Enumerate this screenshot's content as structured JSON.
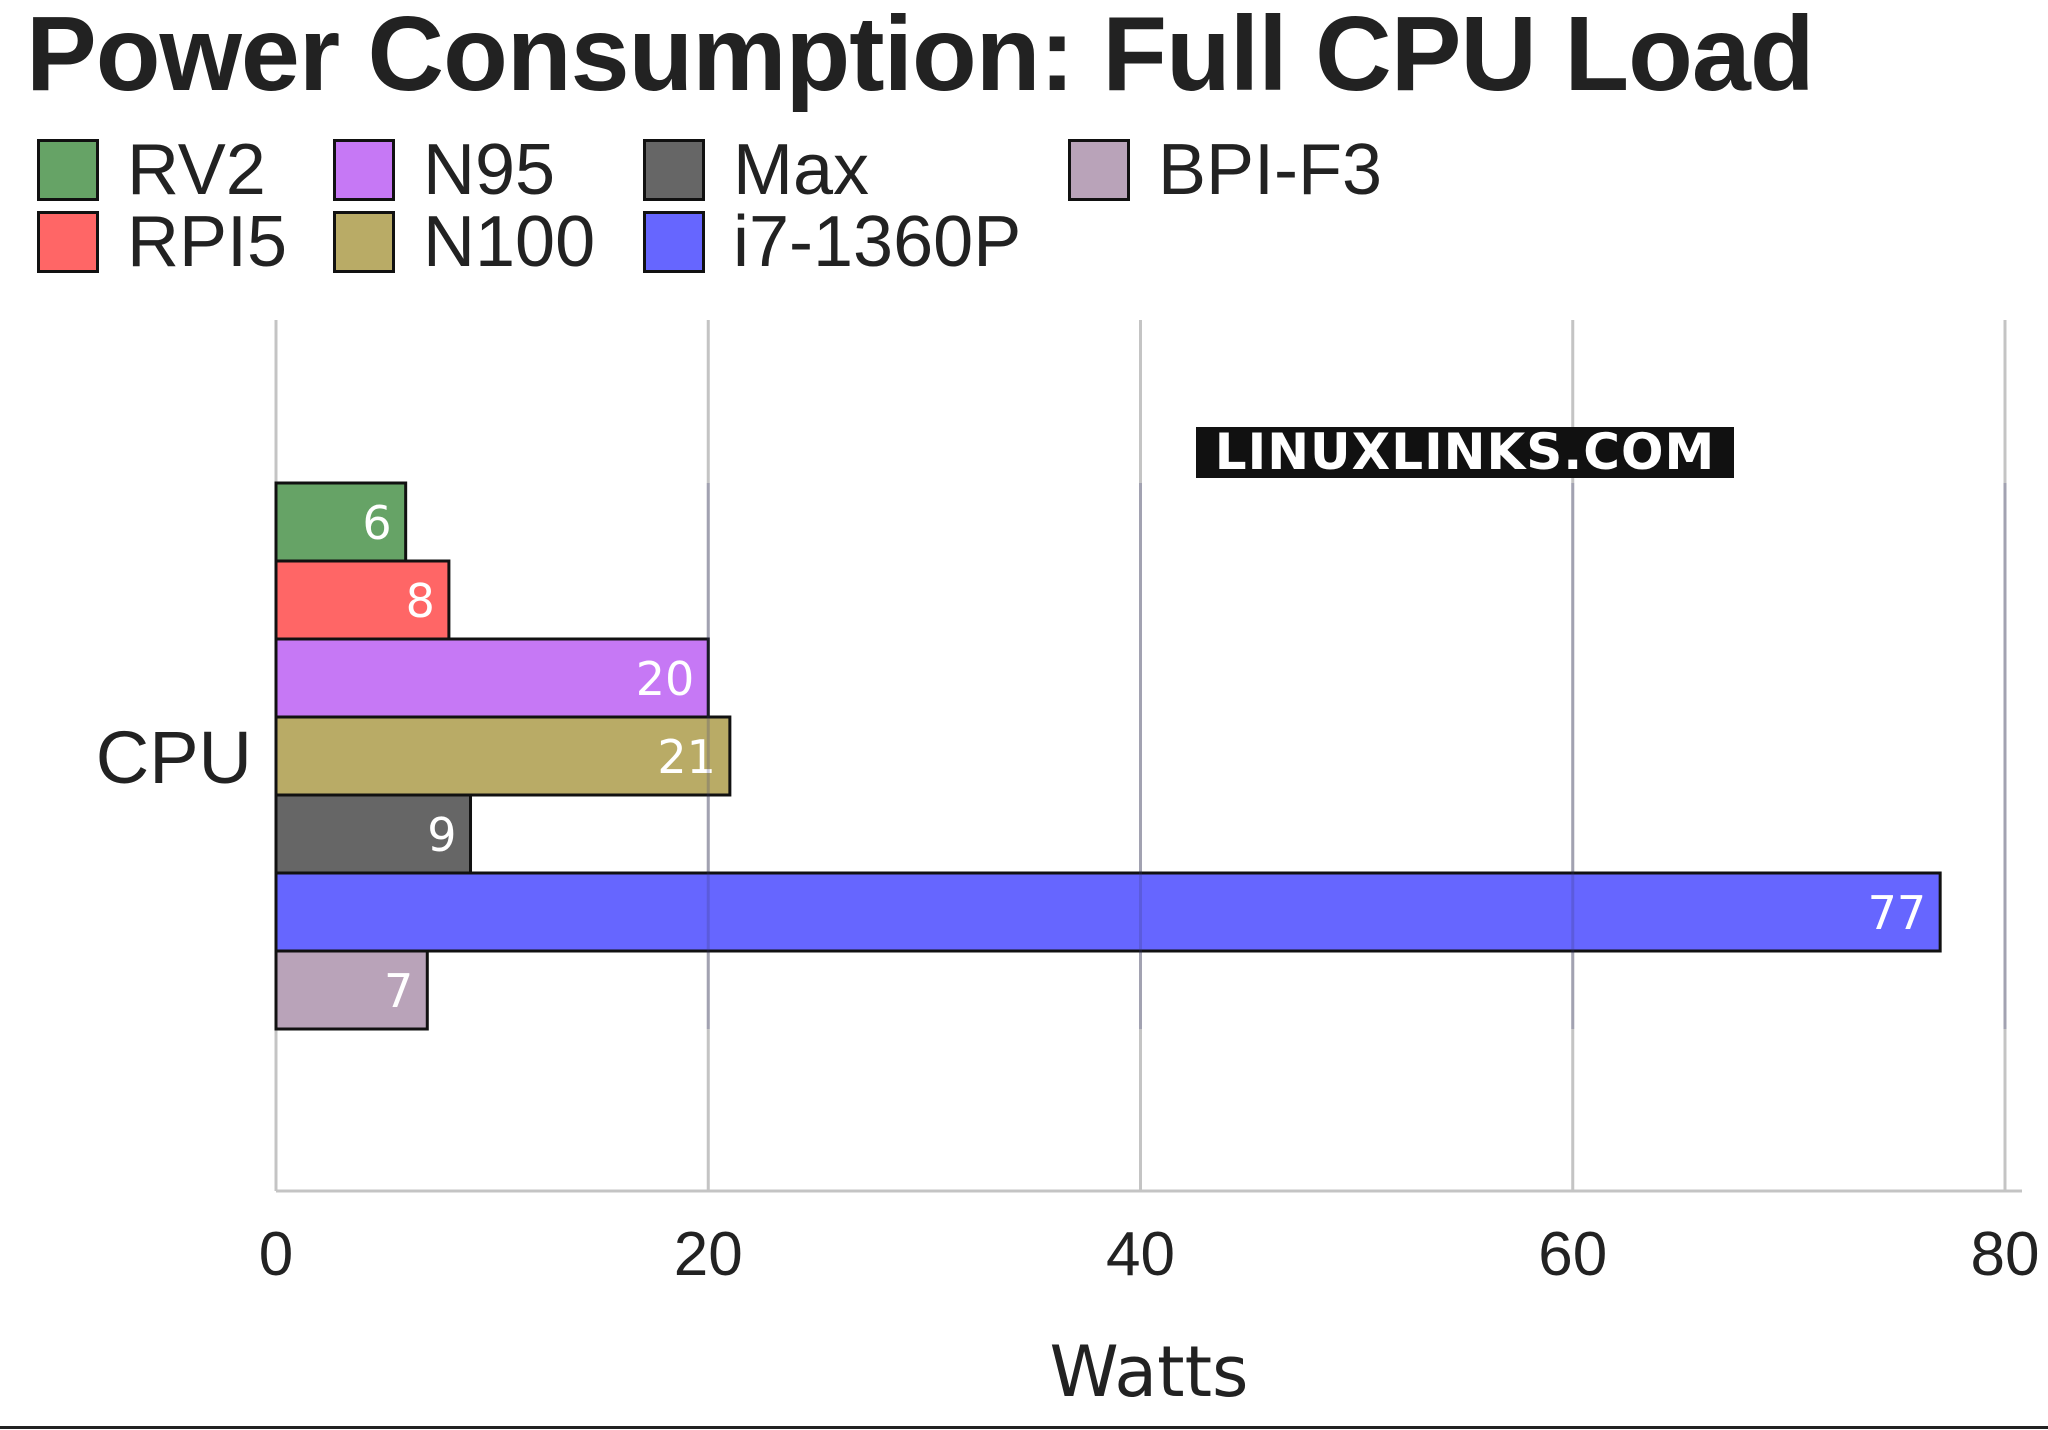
{
  "chart_data": {
    "type": "bar",
    "orientation": "horizontal",
    "title": "Power Consumption: Full CPU Load",
    "categories": [
      "CPU"
    ],
    "series": [
      {
        "name": "RV2",
        "values": [
          6
        ],
        "color": "#66a366"
      },
      {
        "name": "RPI5",
        "values": [
          8
        ],
        "color": "#ff6666"
      },
      {
        "name": "N95",
        "values": [
          20
        ],
        "color": "#c678f5"
      },
      {
        "name": "N100",
        "values": [
          21
        ],
        "color": "#b9ab66"
      },
      {
        "name": "Max",
        "values": [
          9
        ],
        "color": "#666666"
      },
      {
        "name": "i7-1360P",
        "values": [
          77
        ],
        "color": "#6666ff"
      },
      {
        "name": "BPI-F3",
        "values": [
          7
        ],
        "color": "#b9a3b9"
      }
    ],
    "xlabel": "Watts",
    "ylabel": "",
    "xlim": [
      0,
      80
    ],
    "xticks": [
      "0",
      "20",
      "40",
      "60",
      "80"
    ],
    "grid": true,
    "legend": "top",
    "watermark": "LINUXLINKS.COM"
  }
}
